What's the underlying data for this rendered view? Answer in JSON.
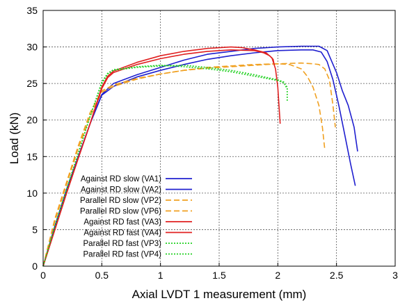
{
  "chart_data": {
    "type": "line",
    "title": "",
    "xlabel": "Axial LVDT 1 measurement (mm)",
    "ylabel": "Load (kN)",
    "xlim": [
      0,
      3
    ],
    "ylim": [
      0,
      35
    ],
    "xticks": [
      "0",
      "0.5",
      "1",
      "1.5",
      "2",
      "2.5",
      "3"
    ],
    "yticks": [
      "0",
      "5",
      "10",
      "15",
      "20",
      "25",
      "30",
      "35"
    ],
    "grid": true,
    "legend_position": "lower-left",
    "series": [
      {
        "name": "Against RD slow (VA1)",
        "color": "#1f1fcf",
        "dash": "solid",
        "x": [
          0,
          0.1,
          0.2,
          0.3,
          0.4,
          0.5,
          0.6,
          0.8,
          1.0,
          1.2,
          1.4,
          1.6,
          1.8,
          2.0,
          2.2,
          2.35,
          2.42,
          2.46,
          2.5,
          2.55,
          2.6,
          2.65,
          2.68
        ],
        "y": [
          0,
          5.5,
          10.5,
          15,
          19.5,
          23.5,
          25,
          26.2,
          27.2,
          28.2,
          29,
          29.4,
          29.8,
          30,
          30.1,
          30.1,
          29.5,
          28,
          26.5,
          24,
          22,
          19,
          15.7
        ]
      },
      {
        "name": "Against RD slow (VA2)",
        "color": "#1f1fcf",
        "dash": "solid",
        "x": [
          0,
          0.1,
          0.2,
          0.3,
          0.4,
          0.5,
          0.6,
          0.8,
          1.0,
          1.2,
          1.4,
          1.6,
          1.8,
          2.0,
          2.2,
          2.3,
          2.37,
          2.42,
          2.47,
          2.52,
          2.57,
          2.62,
          2.66
        ],
        "y": [
          0,
          5.5,
          10.5,
          15,
          19.5,
          23.4,
          24.6,
          25.9,
          26.8,
          27.6,
          28.3,
          28.8,
          29.2,
          29.5,
          29.6,
          29.6,
          29.3,
          28,
          25.5,
          22,
          18,
          14,
          11
        ]
      },
      {
        "name": "Parallel RD slow (VP2)",
        "color": "#f0a020",
        "dash": "dashed",
        "x": [
          0,
          0.1,
          0.2,
          0.3,
          0.4,
          0.5,
          0.6,
          0.8,
          1.0,
          1.2,
          1.4,
          1.6,
          1.8,
          2.0,
          2.1,
          2.2,
          2.25,
          2.3,
          2.35,
          2.38,
          2.4
        ],
        "y": [
          0,
          6.5,
          11.5,
          16.5,
          21,
          24,
          24.8,
          25.7,
          26.3,
          26.8,
          27.2,
          27.4,
          27.6,
          27.7,
          27.6,
          27,
          26,
          24.5,
          22,
          19,
          16
        ]
      },
      {
        "name": "Parallel RD slow (VP6)",
        "color": "#f0a020",
        "dash": "dashed",
        "x": [
          0,
          0.1,
          0.2,
          0.3,
          0.4,
          0.5,
          0.6,
          0.8,
          1.0,
          1.2,
          1.4,
          1.6,
          1.8,
          2.0,
          2.2,
          2.3,
          2.35,
          2.4,
          2.44,
          2.47,
          2.49
        ],
        "y": [
          0,
          6.2,
          11.2,
          16.2,
          20.5,
          23.8,
          24.6,
          25.6,
          26.3,
          26.8,
          27.1,
          27.3,
          27.5,
          27.7,
          27.8,
          27.7,
          27.6,
          27,
          25.5,
          22,
          19
        ]
      },
      {
        "name": "Against RD fast (VA3)",
        "color": "#e02020",
        "dash": "solid",
        "x": [
          0,
          0.1,
          0.2,
          0.3,
          0.4,
          0.5,
          0.55,
          0.6,
          0.8,
          1.0,
          1.2,
          1.4,
          1.6,
          1.7,
          1.8,
          1.9,
          1.95,
          1.98,
          2.0,
          2.01,
          2.02
        ],
        "y": [
          0,
          5,
          10,
          14.8,
          19.5,
          24.5,
          26,
          26.7,
          27.9,
          28.8,
          29.4,
          29.8,
          30,
          29.9,
          29.6,
          29.2,
          28.5,
          27,
          24.5,
          22,
          19.5
        ]
      },
      {
        "name": "Against RD fast (VA4)",
        "color": "#e02020",
        "dash": "solid",
        "x": [
          0,
          0.1,
          0.2,
          0.3,
          0.4,
          0.5,
          0.55,
          0.6,
          0.8,
          1.0,
          1.2,
          1.4,
          1.6,
          1.8,
          1.88,
          1.93,
          1.96,
          1.97
        ],
        "y": [
          0,
          5,
          10,
          14.8,
          19.5,
          24.3,
          25.8,
          26.5,
          27.6,
          28.4,
          29,
          29.4,
          29.6,
          29.5,
          29.2,
          28.8,
          28.3,
          27.5
        ]
      },
      {
        "name": "Parallel RD  fast  (VP3)",
        "color": "#20d020",
        "dash": "dotted",
        "x": [
          0,
          0.1,
          0.2,
          0.3,
          0.4,
          0.5,
          0.55,
          0.6,
          0.8,
          1.0,
          1.2,
          1.4,
          1.6,
          1.8,
          2.0,
          2.05,
          2.07
        ],
        "y": [
          0,
          5.5,
          10.5,
          15.5,
          20.5,
          25,
          26.3,
          26.8,
          27.2,
          27.4,
          27.5,
          27.2,
          26.8,
          26.2,
          25.5,
          25.2,
          24.5
        ]
      },
      {
        "name": "Parallel RD  fast  (VP4)",
        "color": "#20d020",
        "dash": "dotted",
        "x": [
          0,
          0.1,
          0.2,
          0.3,
          0.4,
          0.5,
          0.55,
          0.6,
          0.8,
          1.0,
          1.2,
          1.4,
          1.6,
          1.8,
          2.0,
          2.05,
          2.08,
          2.08
        ],
        "y": [
          0,
          5.5,
          10.5,
          15.5,
          20.5,
          25.2,
          26.4,
          26.9,
          27.3,
          27.5,
          27.3,
          27,
          26.6,
          26,
          25.4,
          25.1,
          24.5,
          22.5
        ]
      }
    ]
  }
}
